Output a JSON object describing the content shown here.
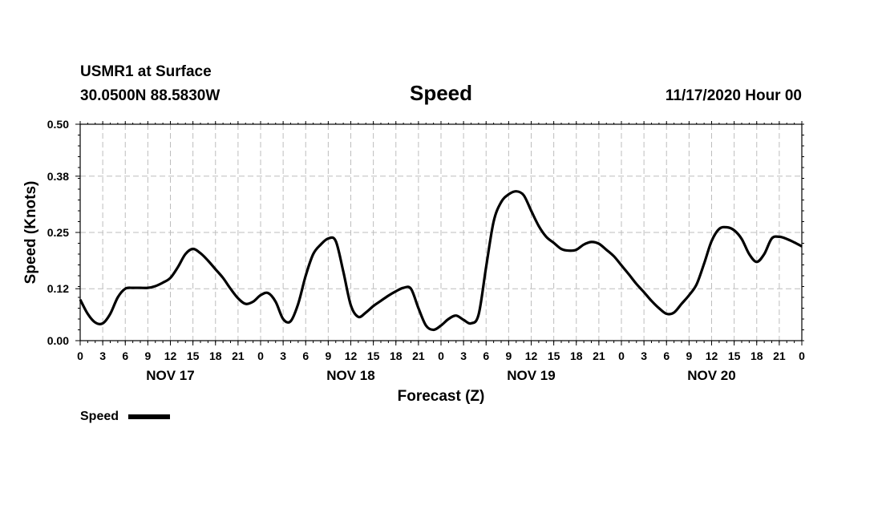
{
  "header": {
    "station": "USMR1 at Surface",
    "location": "30.0500N 88.5830W",
    "title": "Speed",
    "datetime": "11/17/2020 Hour 00"
  },
  "chart_data": {
    "type": "line",
    "title": "Speed",
    "xlabel": "Forecast (Z)",
    "ylabel": "Speed (Knots)",
    "xlim": [
      0,
      96
    ],
    "ylim": [
      0,
      0.5
    ],
    "yticks": [
      0.0,
      0.12,
      0.25,
      0.38,
      0.5
    ],
    "ytick_labels": [
      "0.00",
      "0.12",
      "0.25",
      "0.38",
      "0.50"
    ],
    "xtick_hours": [
      0,
      3,
      6,
      9,
      12,
      15,
      18,
      21,
      24,
      27,
      30,
      33,
      36,
      39,
      42,
      45,
      48,
      51,
      54,
      57,
      60,
      63,
      66,
      69,
      72,
      75,
      78,
      81,
      84,
      87,
      90,
      93,
      96
    ],
    "xtick_labels": [
      "0",
      "3",
      "6",
      "9",
      "12",
      "15",
      "18",
      "21",
      "0",
      "3",
      "6",
      "9",
      "12",
      "15",
      "18",
      "21",
      "0",
      "3",
      "6",
      "9",
      "12",
      "15",
      "18",
      "21",
      "0",
      "3",
      "6",
      "9",
      "12",
      "15",
      "18",
      "21",
      "0"
    ],
    "day_labels": [
      {
        "label": "NOV 17",
        "hour": 12
      },
      {
        "label": "NOV 18",
        "hour": 36
      },
      {
        "label": "NOV 19",
        "hour": 60
      },
      {
        "label": "NOV 20",
        "hour": 84
      }
    ],
    "grid": true,
    "legend": {
      "position": "bottom-left",
      "entries": [
        "Speed"
      ]
    },
    "series": [
      {
        "name": "Speed",
        "color": "#000000",
        "x": [
          0,
          1,
          2,
          3,
          4,
          5,
          6,
          7,
          8,
          9,
          10,
          11,
          12,
          13,
          14,
          15,
          16,
          17,
          18,
          19,
          20,
          21,
          22,
          23,
          24,
          25,
          26,
          27,
          28,
          29,
          30,
          31,
          32,
          33,
          34,
          35,
          36,
          37,
          38,
          39,
          40,
          41,
          42,
          43,
          44,
          45,
          46,
          47,
          48,
          49,
          50,
          51,
          52,
          53,
          54,
          55,
          56,
          57,
          58,
          59,
          60,
          61,
          62,
          63,
          64,
          65,
          66,
          67,
          68,
          69,
          70,
          71,
          72,
          73,
          74,
          75,
          76,
          77,
          78,
          79,
          80,
          81,
          82,
          83,
          84,
          85,
          86,
          87,
          88,
          89,
          90,
          91,
          92,
          93,
          94,
          95,
          96
        ],
        "values": [
          0.095,
          0.062,
          0.042,
          0.04,
          0.062,
          0.1,
          0.12,
          0.122,
          0.122,
          0.122,
          0.126,
          0.134,
          0.145,
          0.17,
          0.2,
          0.212,
          0.202,
          0.185,
          0.165,
          0.145,
          0.12,
          0.098,
          0.085,
          0.09,
          0.105,
          0.11,
          0.09,
          0.05,
          0.045,
          0.085,
          0.15,
          0.2,
          0.222,
          0.236,
          0.23,
          0.16,
          0.082,
          0.055,
          0.065,
          0.08,
          0.092,
          0.104,
          0.114,
          0.122,
          0.12,
          0.075,
          0.035,
          0.025,
          0.035,
          0.05,
          0.058,
          0.048,
          0.04,
          0.06,
          0.17,
          0.275,
          0.32,
          0.338,
          0.345,
          0.336,
          0.3,
          0.265,
          0.24,
          0.226,
          0.212,
          0.208,
          0.21,
          0.222,
          0.228,
          0.224,
          0.21,
          0.195,
          0.174,
          0.153,
          0.131,
          0.112,
          0.092,
          0.075,
          0.062,
          0.065,
          0.085,
          0.105,
          0.13,
          0.178,
          0.23,
          0.258,
          0.262,
          0.255,
          0.235,
          0.2,
          0.182,
          0.2,
          0.236,
          0.24,
          0.235,
          0.227,
          0.218
        ]
      }
    ]
  }
}
